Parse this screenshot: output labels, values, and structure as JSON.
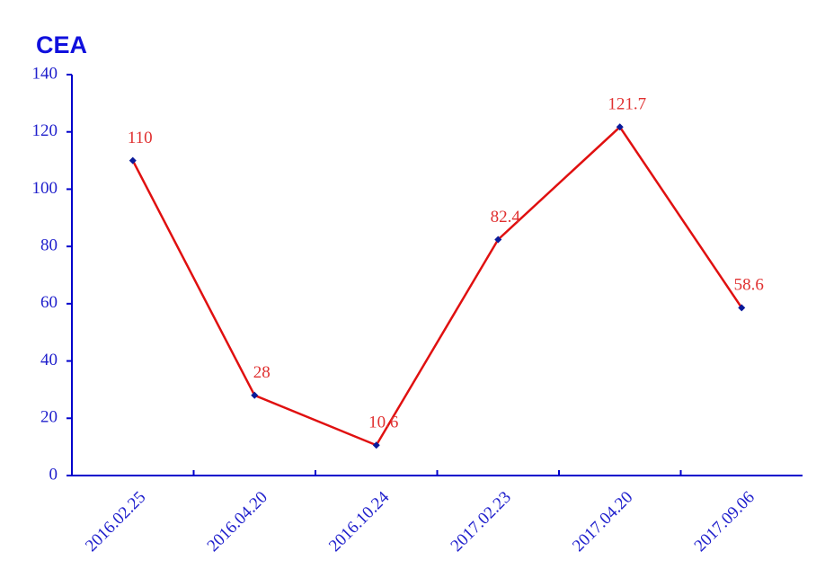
{
  "chart_data": {
    "type": "line",
    "title": "CEA",
    "categories": [
      "2016.02.25",
      "2016.04.20",
      "2016.10.24",
      "2017.02.23",
      "2017.04.20",
      "2017.09.06"
    ],
    "values": [
      110,
      28,
      10.6,
      82.4,
      121.7,
      58.6
    ],
    "color": "#e01010",
    "marker_color": "#0a1a9a",
    "label_color": "#e03030",
    "axis_color": "#0000cc",
    "ylim": [
      0,
      140
    ],
    "yticks": [
      0,
      20,
      40,
      60,
      80,
      100,
      120,
      140
    ],
    "grid": false
  }
}
